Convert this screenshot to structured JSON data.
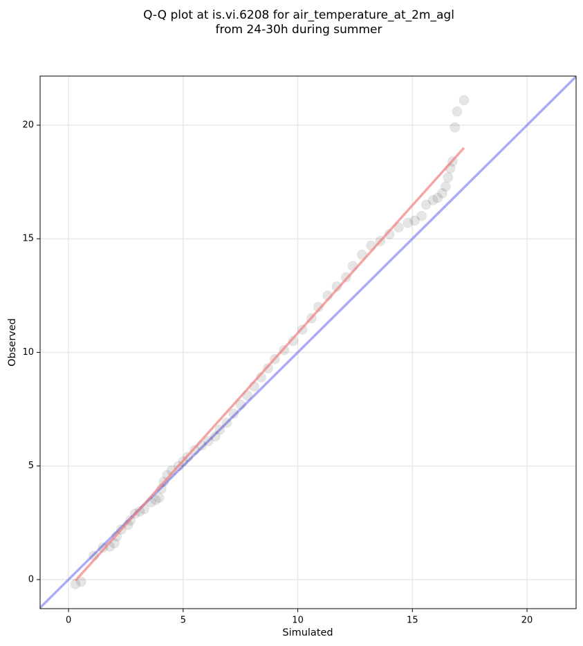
{
  "chart_data": {
    "type": "scatter",
    "title": "Q-Q plot at is.vi.6208 for air_temperature_at_2m_agl",
    "subtitle": "from 24-30h during summer",
    "xlabel": "Simulated",
    "ylabel": "Observed",
    "xlim": [
      -1.24,
      22.14
    ],
    "ylim": [
      -1.28,
      22.16
    ],
    "xticks": [
      0,
      5,
      10,
      15,
      20
    ],
    "yticks": [
      0,
      5,
      10,
      15,
      20
    ],
    "grid": true,
    "color": "#000000",
    "x": [
      0.3,
      0.55,
      1.1,
      1.5,
      1.8,
      2.0,
      2.1,
      2.3,
      2.6,
      2.7,
      2.9,
      3.1,
      3.3,
      3.6,
      3.8,
      3.95,
      4.05,
      4.15,
      4.3,
      4.5,
      4.8,
      5.0,
      5.2,
      5.5,
      5.8,
      6.1,
      6.4,
      6.6,
      6.9,
      7.2,
      7.5,
      7.8,
      8.1,
      8.4,
      8.7,
      9.0,
      9.4,
      9.8,
      10.2,
      10.6,
      10.9,
      11.3,
      11.7,
      12.1,
      12.4,
      12.8,
      13.2,
      13.6,
      14.0,
      14.4,
      14.8,
      15.1,
      15.4,
      15.6,
      15.9,
      16.1,
      16.3,
      16.45,
      16.55,
      16.65,
      16.75,
      16.85,
      16.95,
      17.25
    ],
    "y": [
      -0.2,
      -0.1,
      1.05,
      1.4,
      1.45,
      1.6,
      1.9,
      2.2,
      2.4,
      2.6,
      2.9,
      3.0,
      3.1,
      3.4,
      3.5,
      3.6,
      4.0,
      4.3,
      4.6,
      4.8,
      5.0,
      5.2,
      5.4,
      5.7,
      5.9,
      6.1,
      6.3,
      6.6,
      6.9,
      7.3,
      7.7,
      8.1,
      8.5,
      8.9,
      9.3,
      9.7,
      10.1,
      10.5,
      11.0,
      11.5,
      12.0,
      12.5,
      12.9,
      13.3,
      13.8,
      14.3,
      14.7,
      14.9,
      15.2,
      15.5,
      15.7,
      15.8,
      16.0,
      16.5,
      16.7,
      16.8,
      17.0,
      17.3,
      17.7,
      18.1,
      18.4,
      19.9,
      20.6,
      21.1
    ],
    "fit_line": {
      "color": "#f08080",
      "x": [
        0.3,
        17.25
      ],
      "y": [
        -0.05,
        19.0
      ]
    },
    "identity_line": {
      "color": "#6666ee"
    }
  }
}
